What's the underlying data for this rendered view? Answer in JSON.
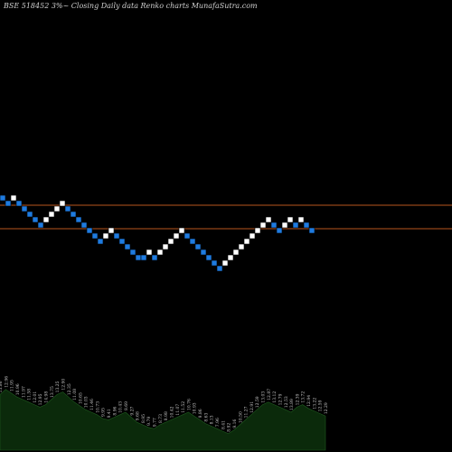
{
  "chart_data": {
    "type": "renko",
    "title": "BSE 518452  3%~  Closing Daily data  Renko  charts MunafaSutra.com",
    "colors": {
      "background": "#000000",
      "up_brick": "#ffffff",
      "down_brick": "#1e7be0",
      "reference_line": "#b8561e",
      "volume_fill": "#0b2a0b"
    },
    "price_scale": {
      "min": 0,
      "max": 60,
      "note": "relative brick levels"
    },
    "reference_lines": [
      46,
      41
    ],
    "bricks": [
      {
        "level": 47,
        "dir": "down"
      },
      {
        "level": 46,
        "dir": "down"
      },
      {
        "level": 47,
        "dir": "up"
      },
      {
        "level": 46,
        "dir": "down"
      },
      {
        "level": 45,
        "dir": "down"
      },
      {
        "level": 44,
        "dir": "down"
      },
      {
        "level": 43,
        "dir": "down"
      },
      {
        "level": 42,
        "dir": "down"
      },
      {
        "level": 43,
        "dir": "up"
      },
      {
        "level": 44,
        "dir": "up"
      },
      {
        "level": 45,
        "dir": "up"
      },
      {
        "level": 46,
        "dir": "up"
      },
      {
        "level": 45,
        "dir": "down"
      },
      {
        "level": 44,
        "dir": "down"
      },
      {
        "level": 43,
        "dir": "down"
      },
      {
        "level": 42,
        "dir": "down"
      },
      {
        "level": 41,
        "dir": "down"
      },
      {
        "level": 40,
        "dir": "down"
      },
      {
        "level": 39,
        "dir": "down"
      },
      {
        "level": 40,
        "dir": "up"
      },
      {
        "level": 41,
        "dir": "up"
      },
      {
        "level": 40,
        "dir": "down"
      },
      {
        "level": 39,
        "dir": "down"
      },
      {
        "level": 38,
        "dir": "down"
      },
      {
        "level": 37,
        "dir": "down"
      },
      {
        "level": 36,
        "dir": "down"
      },
      {
        "level": 36,
        "dir": "down"
      },
      {
        "level": 37,
        "dir": "up"
      },
      {
        "level": 36,
        "dir": "down"
      },
      {
        "level": 37,
        "dir": "up"
      },
      {
        "level": 38,
        "dir": "up"
      },
      {
        "level": 39,
        "dir": "up"
      },
      {
        "level": 40,
        "dir": "up"
      },
      {
        "level": 41,
        "dir": "up"
      },
      {
        "level": 40,
        "dir": "down"
      },
      {
        "level": 39,
        "dir": "down"
      },
      {
        "level": 38,
        "dir": "down"
      },
      {
        "level": 37,
        "dir": "down"
      },
      {
        "level": 36,
        "dir": "down"
      },
      {
        "level": 35,
        "dir": "down"
      },
      {
        "level": 34,
        "dir": "down"
      },
      {
        "level": 35,
        "dir": "up"
      },
      {
        "level": 36,
        "dir": "up"
      },
      {
        "level": 37,
        "dir": "up"
      },
      {
        "level": 38,
        "dir": "up"
      },
      {
        "level": 39,
        "dir": "up"
      },
      {
        "level": 40,
        "dir": "up"
      },
      {
        "level": 41,
        "dir": "up"
      },
      {
        "level": 42,
        "dir": "up"
      },
      {
        "level": 43,
        "dir": "up"
      },
      {
        "level": 42,
        "dir": "down"
      },
      {
        "level": 41,
        "dir": "down"
      },
      {
        "level": 42,
        "dir": "up"
      },
      {
        "level": 43,
        "dir": "up"
      },
      {
        "level": 42,
        "dir": "down"
      },
      {
        "level": 43,
        "dir": "up"
      },
      {
        "level": 42,
        "dir": "down"
      },
      {
        "level": 41,
        "dir": "down"
      }
    ],
    "volume": {
      "values": [
        44,
        48,
        45,
        42,
        40,
        38,
        36,
        34,
        36,
        40,
        44,
        46,
        42,
        38,
        35,
        32,
        30,
        28,
        25,
        24,
        26,
        28,
        30,
        26,
        22,
        20,
        18,
        17,
        20,
        22,
        24,
        26,
        28,
        30,
        27,
        24,
        21,
        19,
        17,
        15,
        13,
        16,
        20,
        24,
        28,
        32,
        36,
        38,
        36,
        34,
        32,
        30,
        34,
        36,
        33,
        31,
        29,
        27
      ],
      "labels": [
        "13.86",
        "12.96",
        "11.95",
        "10.96",
        "11.97",
        "11.58",
        "12.01",
        "12.95",
        "14.98",
        "13.75",
        "13.25",
        "12.90",
        "12.35",
        "11.08",
        "10.65",
        "10.03",
        "11.46",
        "10.73",
        "9.95",
        "9.41",
        "8.96",
        "10.43",
        "8.69",
        "9.27",
        "9.68",
        "8.95",
        "9.79",
        "9.77",
        "8.73",
        "8.98",
        "10.42",
        "11.07",
        "11.52",
        "10.76",
        "10.93",
        "9.86",
        "8.63",
        "8.13",
        "7.96",
        "8.41",
        "8.92",
        "9.16",
        "10.50",
        "11.27",
        "12.91",
        "12.59",
        "13.03",
        "12.87",
        "13.12",
        "12.79",
        "12.53",
        "13.89",
        "12.39",
        "13.72",
        "12.94",
        "13.22",
        "12.59",
        "12.29"
      ]
    }
  }
}
